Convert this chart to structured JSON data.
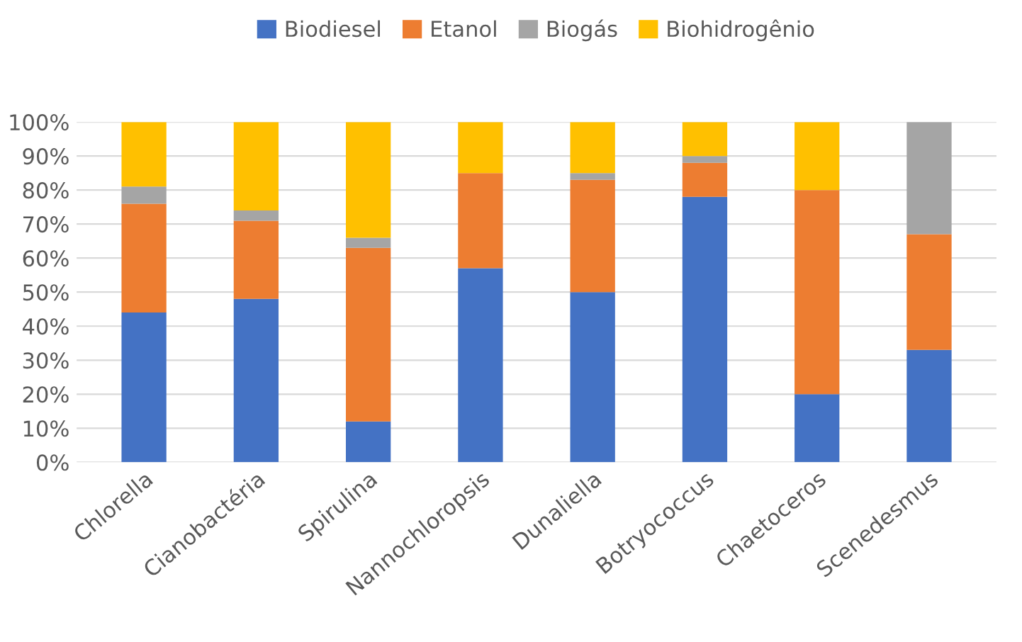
{
  "chart_data": {
    "type": "bar",
    "stacked": true,
    "categories": [
      "Chlorella",
      "Cianobactéria",
      "Spirulina",
      "Nannochloropsis",
      "Dunaliella",
      "Botryococcus",
      "Chaetoceros",
      "Scenedesmus"
    ],
    "series": [
      {
        "name": "Biodiesel",
        "color": "#4472c4",
        "values": [
          44,
          48,
          12,
          57,
          50,
          78,
          20,
          33
        ]
      },
      {
        "name": "Etanol",
        "color": "#ed7d31",
        "values": [
          32,
          23,
          51,
          28,
          33,
          10,
          60,
          34
        ]
      },
      {
        "name": "Biogás",
        "color": "#a5a5a5",
        "values": [
          5,
          3,
          3,
          0,
          2,
          2,
          0,
          33
        ]
      },
      {
        "name": "Biohidrogênio",
        "color": "#ffc000",
        "values": [
          19,
          26,
          34,
          15,
          15,
          10,
          20,
          0
        ]
      }
    ],
    "ylim": [
      0,
      100
    ],
    "yticks": [
      {
        "value": 0,
        "label": "0%"
      },
      {
        "value": 10,
        "label": "10%"
      },
      {
        "value": 20,
        "label": "20%"
      },
      {
        "value": 30,
        "label": "30%"
      },
      {
        "value": 40,
        "label": "40%"
      },
      {
        "value": 50,
        "label": "50%"
      },
      {
        "value": 60,
        "label": "60%"
      },
      {
        "value": 70,
        "label": "70%"
      },
      {
        "value": 80,
        "label": "80%"
      },
      {
        "value": 90,
        "label": "90%"
      },
      {
        "value": 100,
        "label": "100%"
      }
    ],
    "grid": "y",
    "legend": "top"
  }
}
